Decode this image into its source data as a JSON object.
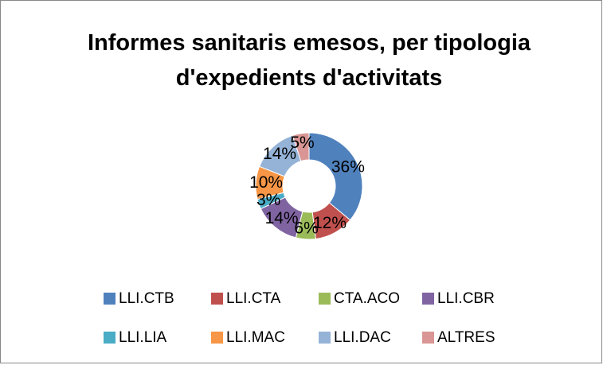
{
  "chart_data": {
    "type": "donut",
    "title": "Informes sanitaris emesos, per tipologia d'expedients d'activitats",
    "categories": [
      "LLI.CTB",
      "LLI.CTA",
      "CTA.ACO",
      "LLI.CBR",
      "LLI.LIA",
      "LLI.MAC",
      "LLI.DAC",
      "ALTRES"
    ],
    "values": [
      36,
      12,
      6,
      14,
      3,
      10,
      14,
      5
    ],
    "value_labels": [
      "36%",
      "12%",
      "6%",
      "14%",
      "3%",
      "10%",
      "14%",
      "5%"
    ],
    "colors": [
      "#4f81bd",
      "#c0504d",
      "#9bbb59",
      "#8064a2",
      "#4bacc6",
      "#f79646",
      "#95b3d7",
      "#d99694"
    ],
    "legend": "bottom"
  }
}
